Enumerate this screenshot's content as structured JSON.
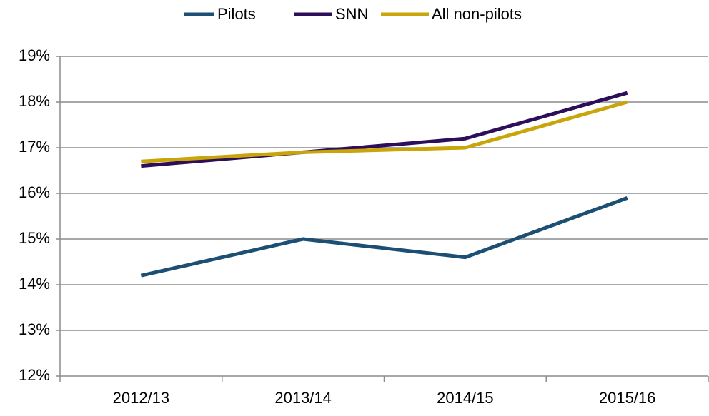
{
  "chart_data": {
    "type": "line",
    "categories": [
      "2012/13",
      "2013/14",
      "2014/15",
      "2015/16"
    ],
    "series": [
      {
        "name": "Pilots",
        "color": "#1c4f73",
        "values": [
          14.2,
          15.0,
          14.6,
          15.9
        ]
      },
      {
        "name": "SNN",
        "color": "#2d0e5a",
        "values": [
          16.6,
          16.9,
          17.2,
          18.2
        ]
      },
      {
        "name": "All non-pilots",
        "color": "#c9a50a",
        "values": [
          16.7,
          16.9,
          17.0,
          18.0
        ]
      }
    ],
    "ylim": [
      12,
      19
    ],
    "yticks": [
      {
        "value": 12,
        "label": "12%"
      },
      {
        "value": 13,
        "label": "13%"
      },
      {
        "value": 14,
        "label": "14%"
      },
      {
        "value": 15,
        "label": "15%"
      },
      {
        "value": 16,
        "label": "16%"
      },
      {
        "value": 17,
        "label": "17%"
      },
      {
        "value": 18,
        "label": "18%"
      },
      {
        "value": 19,
        "label": "19%"
      }
    ],
    "grid": true,
    "legend": "top"
  }
}
